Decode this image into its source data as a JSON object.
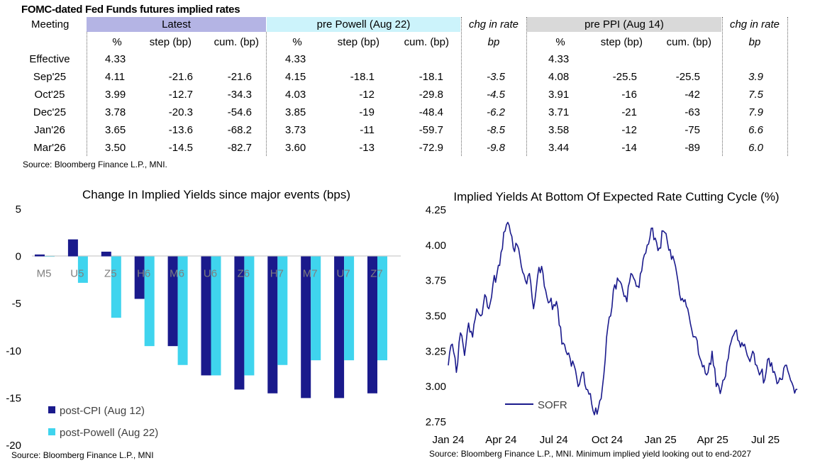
{
  "table": {
    "title": "FOMC-dated Fed Funds futures implied rates",
    "meeting_label": "Meeting",
    "groups": {
      "latest": "Latest",
      "pre_powell": "pre Powell (Aug 22)",
      "chg1": "chg in rate",
      "pre_ppi": "pre PPI (Aug 14)",
      "chg2": "chg in rate"
    },
    "subheaders": {
      "pct": "%",
      "step": "step (bp)",
      "cum": "cum. (bp)",
      "bp": "bp"
    },
    "rows": [
      {
        "meeting": "Effective",
        "l_pct": "4.33",
        "l_step": "",
        "l_cum": "",
        "p_pct": "4.33",
        "p_step": "",
        "p_cum": "",
        "chg1": "",
        "q_pct": "4.33",
        "q_step": "",
        "q_cum": "",
        "chg2": ""
      },
      {
        "meeting": "Sep'25",
        "l_pct": "4.11",
        "l_step": "-21.6",
        "l_cum": "-21.6",
        "p_pct": "4.15",
        "p_step": "-18.1",
        "p_cum": "-18.1",
        "chg1": "-3.5",
        "q_pct": "4.08",
        "q_step": "-25.5",
        "q_cum": "-25.5",
        "chg2": "3.9"
      },
      {
        "meeting": "Oct'25",
        "l_pct": "3.99",
        "l_step": "-12.7",
        "l_cum": "-34.3",
        "p_pct": "4.03",
        "p_step": "-12",
        "p_cum": "-29.8",
        "chg1": "-4.5",
        "q_pct": "3.91",
        "q_step": "-16",
        "q_cum": "-42",
        "chg2": "7.5"
      },
      {
        "meeting": "Dec'25",
        "l_pct": "3.78",
        "l_step": "-20.3",
        "l_cum": "-54.6",
        "p_pct": "3.85",
        "p_step": "-19",
        "p_cum": "-48.4",
        "chg1": "-6.2",
        "q_pct": "3.71",
        "q_step": "-21",
        "q_cum": "-63",
        "chg2": "7.9"
      },
      {
        "meeting": "Jan'26",
        "l_pct": "3.65",
        "l_step": "-13.6",
        "l_cum": "-68.2",
        "p_pct": "3.73",
        "p_step": "-11",
        "p_cum": "-59.7",
        "chg1": "-8.5",
        "q_pct": "3.58",
        "q_step": "-12",
        "q_cum": "-75",
        "chg2": "6.6"
      },
      {
        "meeting": "Mar'26",
        "l_pct": "3.50",
        "l_step": "-14.5",
        "l_cum": "-82.7",
        "p_pct": "3.60",
        "p_step": "-13",
        "p_cum": "-72.9",
        "chg1": "-9.8",
        "q_pct": "3.44",
        "q_step": "-14",
        "q_cum": "-89",
        "chg2": "6.0"
      }
    ],
    "source": "Source: Bloomberg Finance L.P., MNI.",
    "colors": {
      "latest": "#b4b4e4",
      "pre_powell": "#ccf3fb",
      "pre_ppi": "#d9d9d9"
    }
  },
  "chart_data": [
    {
      "type": "bar",
      "title": "Change In Implied Yields since major events (bps)",
      "categories": [
        "M5",
        "U5",
        "Z5",
        "H6",
        "M6",
        "U6",
        "Z6",
        "H7",
        "M7",
        "U7",
        "Z7"
      ],
      "series": [
        {
          "name": "post-CPI (Aug 12)",
          "color": "#1a1a8c",
          "values": [
            0.2,
            1.8,
            0.5,
            -4.5,
            -9.5,
            -12.6,
            -14.1,
            -14.5,
            -15.0,
            -15.0,
            -14.5
          ]
        },
        {
          "name": "post-Powell (Aug 22)",
          "color": "#3fd4ee",
          "values": [
            0.0,
            -2.8,
            -6.5,
            -9.5,
            -11.5,
            -12.6,
            -12.6,
            -11.5,
            -11.0,
            -11.0,
            -11.0
          ]
        }
      ],
      "ylim": [
        -20,
        5
      ],
      "yticks": [
        "5",
        "0",
        "-5",
        "-10",
        "-15",
        "-20"
      ],
      "source": "Source: Bloomberg Finance L.P., MNI"
    },
    {
      "type": "line",
      "title": "Implied Yields At Bottom Of Expected Rate Cutting Cycle (%)",
      "series": [
        {
          "name": "SOFR",
          "color": "#1a1a8c",
          "x": [
            "2024-01-01",
            "2024-01-08",
            "2024-01-15",
            "2024-01-22",
            "2024-01-29",
            "2024-02-05",
            "2024-02-12",
            "2024-02-19",
            "2024-02-26",
            "2024-03-04",
            "2024-03-11",
            "2024-03-18",
            "2024-03-25",
            "2024-04-01",
            "2024-04-08",
            "2024-04-15",
            "2024-04-22",
            "2024-04-29",
            "2024-05-06",
            "2024-05-13",
            "2024-05-20",
            "2024-05-27",
            "2024-06-03",
            "2024-06-10",
            "2024-06-17",
            "2024-06-24",
            "2024-07-01",
            "2024-07-08",
            "2024-07-15",
            "2024-07-22",
            "2024-07-29",
            "2024-08-05",
            "2024-08-12",
            "2024-08-19",
            "2024-08-26",
            "2024-09-02",
            "2024-09-09",
            "2024-09-16",
            "2024-09-23",
            "2024-09-30",
            "2024-10-07",
            "2024-10-14",
            "2024-10-21",
            "2024-10-28",
            "2024-11-04",
            "2024-11-11",
            "2024-11-18",
            "2024-11-25",
            "2024-12-02",
            "2024-12-09",
            "2024-12-16",
            "2024-12-23",
            "2024-12-30",
            "2025-01-06",
            "2025-01-13",
            "2025-01-20",
            "2025-01-27",
            "2025-02-03",
            "2025-02-10",
            "2025-02-17",
            "2025-02-24",
            "2025-03-03",
            "2025-03-10",
            "2025-03-17",
            "2025-03-24",
            "2025-03-31",
            "2025-04-07",
            "2025-04-14",
            "2025-04-21",
            "2025-04-28",
            "2025-05-05",
            "2025-05-12",
            "2025-05-19",
            "2025-05-26",
            "2025-06-02",
            "2025-06-09",
            "2025-06-16",
            "2025-06-23",
            "2025-06-30",
            "2025-07-07",
            "2025-07-14",
            "2025-07-21",
            "2025-07-28",
            "2025-08-04",
            "2025-08-11",
            "2025-08-18",
            "2025-08-25"
          ],
          "values": [
            3.15,
            3.3,
            3.1,
            3.38,
            3.22,
            3.45,
            3.35,
            3.55,
            3.5,
            3.65,
            3.55,
            3.72,
            3.8,
            3.95,
            4.1,
            4.14,
            3.98,
            4.0,
            3.85,
            3.75,
            3.8,
            3.55,
            3.78,
            3.85,
            3.68,
            3.6,
            3.58,
            3.55,
            3.3,
            3.25,
            3.2,
            3.15,
            3.0,
            3.1,
            2.98,
            2.95,
            2.8,
            2.85,
            3.0,
            3.35,
            3.5,
            3.72,
            3.75,
            3.68,
            3.6,
            3.8,
            3.75,
            3.7,
            3.9,
            4.0,
            4.12,
            4.05,
            3.98,
            4.1,
            4.02,
            3.9,
            3.85,
            3.65,
            3.6,
            3.55,
            3.4,
            3.35,
            3.2,
            3.15,
            3.1,
            3.25,
            3.0,
            2.95,
            3.05,
            3.2,
            3.35,
            3.4,
            3.28,
            3.3,
            3.2,
            3.25,
            3.15,
            3.1,
            3.05,
            3.2,
            3.1,
            3.02,
            3.05,
            3.15,
            3.08,
            3.0,
            2.98
          ]
        }
      ],
      "xticks": [
        "Jan 24",
        "Apr 24",
        "Jul 24",
        "Oct 24",
        "Jan 25",
        "Apr 25",
        "Jul 25"
      ],
      "yticks": [
        "4.25",
        "4.00",
        "3.75",
        "3.50",
        "3.25",
        "3.00",
        "2.75"
      ],
      "ylim": [
        2.75,
        4.25
      ],
      "source": "Source: Bloomberg Finance L.P., MNI. Minimum implied yield looking out to end-2027"
    }
  ]
}
